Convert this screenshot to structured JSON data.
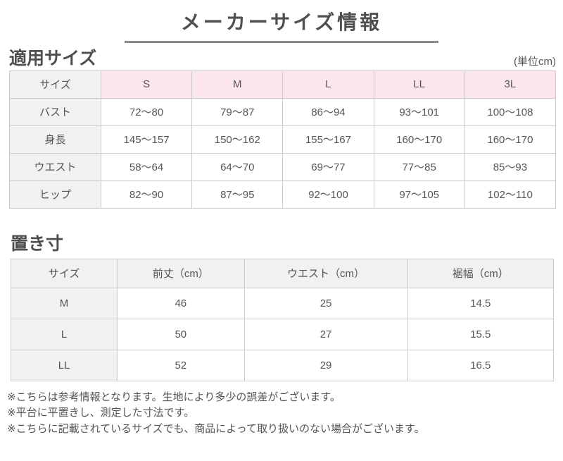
{
  "page": {
    "title": "メーカーサイズ情報",
    "unit_note": "(単位cm)"
  },
  "applicable_sizes": {
    "heading": "適用サイズ",
    "columns": [
      "サイズ",
      "S",
      "M",
      "L",
      "LL",
      "3L"
    ],
    "rows": [
      {
        "label": "バスト",
        "values": [
          "72～80",
          "79～87",
          "86～94",
          "93～101",
          "100～108"
        ]
      },
      {
        "label": "身長",
        "values": [
          "145～157",
          "150～162",
          "155～167",
          "160～170",
          "160～170"
        ]
      },
      {
        "label": "ウエスト",
        "values": [
          "58～64",
          "64～70",
          "69～77",
          "77～85",
          "85～93"
        ]
      },
      {
        "label": "ヒップ",
        "values": [
          "82～90",
          "87～95",
          "92～100",
          "97～105",
          "102～110"
        ]
      }
    ]
  },
  "flat_measurements": {
    "heading": "置き寸",
    "columns": [
      "サイズ",
      "前丈（cm）",
      "ウエスト（cm）",
      "裾幅（cm）"
    ],
    "rows": [
      {
        "label": "M",
        "values": [
          "46",
          "25",
          "14.5"
        ]
      },
      {
        "label": "L",
        "values": [
          "50",
          "27",
          "15.5"
        ]
      },
      {
        "label": "LL",
        "values": [
          "52",
          "29",
          "16.5"
        ]
      }
    ]
  },
  "footnotes": [
    "※こちらは参考情報となります。生地により多少の誤差がございます。",
    "※平台に平置きし、測定した寸法です。",
    "※こちらに記載されているサイズでも、商品によって取り扱いのない場合がございます。"
  ],
  "colors": {
    "pink_header": "#fbe5ef",
    "gray_cell": "#f1f1f1",
    "border": "#cccccc",
    "text": "#555555",
    "title_underline": "#8a8a8a"
  }
}
